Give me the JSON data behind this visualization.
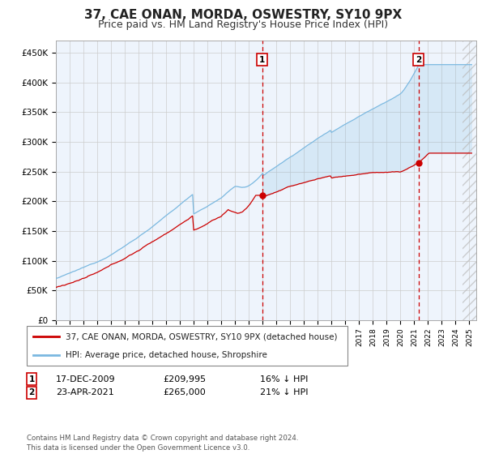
{
  "title": "37, CAE ONAN, MORDA, OSWESTRY, SY10 9PX",
  "subtitle": "Price paid vs. HM Land Registry's House Price Index (HPI)",
  "ylim": [
    0,
    470000
  ],
  "yticks": [
    0,
    50000,
    100000,
    150000,
    200000,
    250000,
    300000,
    350000,
    400000,
    450000
  ],
  "ytick_labels": [
    "£0",
    "£50K",
    "£100K",
    "£150K",
    "£200K",
    "£250K",
    "£300K",
    "£350K",
    "£400K",
    "£450K"
  ],
  "xlim_start": 1995.0,
  "xlim_end": 2025.5,
  "hpi_color": "#7ab8e0",
  "price_color": "#cc0000",
  "vline1_x": 2009.96,
  "vline2_x": 2021.31,
  "sale1_price": 209995,
  "sale2_price": 265000,
  "legend_label1": "37, CAE ONAN, MORDA, OSWESTRY, SY10 9PX (detached house)",
  "legend_label2": "HPI: Average price, detached house, Shropshire",
  "ann1_label": "1",
  "ann1_date": "17-DEC-2009",
  "ann1_price": "£209,995",
  "ann1_hpi": "16% ↓ HPI",
  "ann2_label": "2",
  "ann2_date": "23-APR-2021",
  "ann2_price": "£265,000",
  "ann2_hpi": "21% ↓ HPI",
  "footer": "Contains HM Land Registry data © Crown copyright and database right 2024.\nThis data is licensed under the Open Government Licence v3.0.",
  "background_color": "#ffffff",
  "plot_bg_color": "#eef4fc",
  "grid_color": "#cccccc",
  "title_fontsize": 11,
  "subtitle_fontsize": 9,
  "hatch_start": 2024.5
}
